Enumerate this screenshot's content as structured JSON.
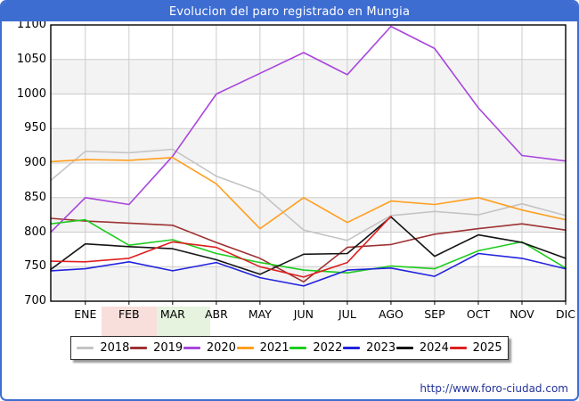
{
  "window": {
    "title": "Evolucion del paro registrado en Mungia"
  },
  "footer": {
    "url": "http://www.foro-ciudad.com"
  },
  "ui_colors": {
    "titlebar_bg": "#3e6dd2",
    "frame_border": "#3e6dd2",
    "grid_line": "#cccccc",
    "band_fill": "#f3f3f3",
    "axis_border": "#000000",
    "footer_link": "#223399",
    "legend_border": "#2b2b2b",
    "watermark_pink": "rgba(235,150,140,0.30)",
    "watermark_green": "rgba(170,215,150,0.30)"
  },
  "chart_data": {
    "type": "line",
    "title": "Evolucion del paro registrado en Mungia",
    "xlabel": "",
    "ylabel": "",
    "ylim": [
      700,
      1100
    ],
    "grid": true,
    "legend_position": "bottom",
    "y_ticks": [
      1100,
      1050,
      1000,
      950,
      900,
      850,
      800,
      750,
      700
    ],
    "shaded_bands": [
      [
        1000,
        1050
      ],
      [
        900,
        950
      ],
      [
        800,
        850
      ],
      [
        700,
        750
      ]
    ],
    "categories": [
      "",
      "ENE",
      "FEB",
      "MAR",
      "ABR",
      "MAY",
      "JUN",
      "JUL",
      "AGO",
      "SEP",
      "OCT",
      "NOV",
      "DIC"
    ],
    "series": [
      {
        "name": "2018",
        "color": "#c4c4c4",
        "values": [
          875,
          917,
          915,
          920,
          881,
          858,
          803,
          788,
          824,
          830,
          825,
          841,
          824
        ]
      },
      {
        "name": "2019",
        "color": "#9e3232",
        "values": [
          820,
          816,
          813,
          810,
          785,
          762,
          728,
          778,
          782,
          797,
          805,
          812,
          803
        ]
      },
      {
        "name": "2020",
        "color": "#a845dd",
        "values": [
          800,
          850,
          840,
          910,
          1000,
          1030,
          1060,
          1028,
          1098,
          1066,
          980,
          911,
          903
        ]
      },
      {
        "name": "2021",
        "color": "#ff9f1f",
        "values": [
          902,
          905,
          904,
          908,
          870,
          805,
          850,
          814,
          845,
          840,
          850,
          832,
          818
        ]
      },
      {
        "name": "2022",
        "color": "#1ecc1e",
        "values": [
          812,
          818,
          781,
          789,
          769,
          756,
          745,
          741,
          751,
          747,
          773,
          786,
          748
        ]
      },
      {
        "name": "2023",
        "color": "#2222dd",
        "values": [
          744,
          747,
          757,
          744,
          756,
          734,
          722,
          745,
          748,
          736,
          769,
          762,
          747
        ]
      },
      {
        "name": "2024",
        "color": "#141414",
        "values": [
          746,
          783,
          779,
          776,
          760,
          739,
          768,
          769,
          822,
          765,
          796,
          785,
          762
        ]
      },
      {
        "name": "2025",
        "color": "#dd2020",
        "values": [
          758,
          757,
          762,
          786,
          778,
          750,
          735,
          756,
          823,
          null,
          null,
          null,
          null
        ]
      }
    ]
  }
}
